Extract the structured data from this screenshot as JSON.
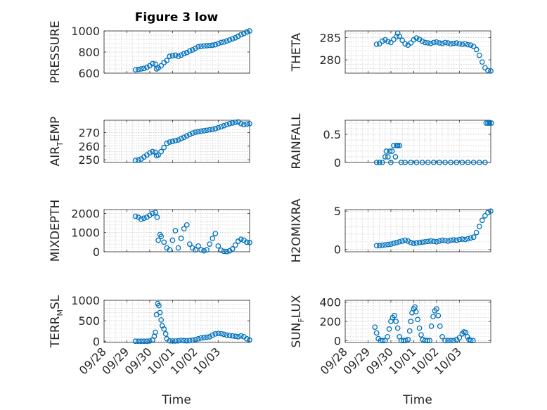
{
  "figure": {
    "title": "Figure 3 low"
  },
  "chart_data": [
    {
      "type": "scatter",
      "name": "pressure",
      "ylabel": "PRESSURE",
      "ylabel_sub": "",
      "ylabel_suffix": "",
      "ylim": [
        600,
        1000
      ],
      "yticks": [
        600,
        800,
        1000
      ],
      "points": [
        [
          0.05,
          632
        ],
        [
          0.1,
          635
        ],
        [
          0.15,
          640
        ],
        [
          0.2,
          645
        ],
        [
          0.25,
          655
        ],
        [
          0.3,
          670
        ],
        [
          0.35,
          690
        ],
        [
          0.4,
          685
        ],
        [
          0.42,
          640
        ],
        [
          0.45,
          650
        ],
        [
          0.5,
          670
        ],
        [
          0.55,
          700
        ],
        [
          0.6,
          720
        ],
        [
          0.65,
          760
        ],
        [
          0.7,
          765
        ],
        [
          0.75,
          770
        ],
        [
          0.8,
          760
        ],
        [
          0.85,
          770
        ],
        [
          0.9,
          785
        ],
        [
          0.95,
          795
        ],
        [
          1.0,
          810
        ],
        [
          1.05,
          820
        ],
        [
          1.1,
          835
        ],
        [
          1.15,
          850
        ],
        [
          1.2,
          855
        ],
        [
          1.25,
          858
        ],
        [
          1.3,
          860
        ],
        [
          1.35,
          862
        ],
        [
          1.4,
          865
        ],
        [
          1.45,
          870
        ],
        [
          1.5,
          880
        ],
        [
          1.55,
          890
        ],
        [
          1.6,
          895
        ],
        [
          1.65,
          905
        ],
        [
          1.7,
          915
        ],
        [
          1.75,
          925
        ],
        [
          1.8,
          935
        ],
        [
          1.85,
          950
        ],
        [
          1.9,
          965
        ],
        [
          1.95,
          975
        ],
        [
          2.0,
          990
        ],
        [
          2.05,
          1000
        ]
      ]
    },
    {
      "type": "scatter",
      "name": "theta",
      "ylabel": "THETA",
      "ylabel_sub": "",
      "ylabel_suffix": "",
      "ylim": [
        277,
        286.5
      ],
      "yticks": [
        280,
        285
      ],
      "points": [
        [
          0.05,
          283.5
        ],
        [
          0.1,
          283.6
        ],
        [
          0.15,
          284.2
        ],
        [
          0.2,
          284.5
        ],
        [
          0.25,
          284.1
        ],
        [
          0.3,
          283.9
        ],
        [
          0.35,
          284.6
        ],
        [
          0.4,
          285.2
        ],
        [
          0.42,
          286.0
        ],
        [
          0.45,
          285.3
        ],
        [
          0.5,
          284.4
        ],
        [
          0.55,
          283.6
        ],
        [
          0.6,
          283.3
        ],
        [
          0.65,
          283.8
        ],
        [
          0.7,
          284.5
        ],
        [
          0.75,
          284.9
        ],
        [
          0.8,
          284.6
        ],
        [
          0.85,
          284.2
        ],
        [
          0.9,
          283.9
        ],
        [
          0.95,
          283.8
        ],
        [
          1.0,
          283.7
        ],
        [
          1.05,
          283.9
        ],
        [
          1.1,
          284.0
        ],
        [
          1.15,
          283.8
        ],
        [
          1.2,
          283.7
        ],
        [
          1.25,
          283.9
        ],
        [
          1.3,
          283.8
        ],
        [
          1.35,
          283.6
        ],
        [
          1.4,
          283.7
        ],
        [
          1.45,
          283.8
        ],
        [
          1.5,
          283.6
        ],
        [
          1.55,
          283.5
        ],
        [
          1.6,
          283.6
        ],
        [
          1.65,
          283.4
        ],
        [
          1.7,
          283.3
        ],
        [
          1.75,
          283.0
        ],
        [
          1.8,
          282.3
        ],
        [
          1.85,
          281.0
        ],
        [
          1.9,
          279.5
        ],
        [
          1.95,
          278.2
        ],
        [
          2.0,
          277.6
        ],
        [
          2.05,
          277.5
        ]
      ]
    },
    {
      "type": "scatter",
      "name": "air_temp",
      "ylabel": "AIR",
      "ylabel_sub": "T",
      "ylabel_suffix": "EMP",
      "ylim": [
        248,
        279
      ],
      "yticks": [
        250,
        260,
        270
      ],
      "points": [
        [
          0.05,
          249.5
        ],
        [
          0.1,
          249.8
        ],
        [
          0.15,
          250.5
        ],
        [
          0.2,
          252
        ],
        [
          0.25,
          253.5
        ],
        [
          0.3,
          255
        ],
        [
          0.35,
          256
        ],
        [
          0.4,
          255.5
        ],
        [
          0.42,
          253
        ],
        [
          0.45,
          253.5
        ],
        [
          0.5,
          256
        ],
        [
          0.55,
          259
        ],
        [
          0.6,
          262
        ],
        [
          0.65,
          263
        ],
        [
          0.7,
          263.5
        ],
        [
          0.75,
          264
        ],
        [
          0.8,
          264.5
        ],
        [
          0.85,
          265.5
        ],
        [
          0.9,
          266.5
        ],
        [
          0.95,
          267.5
        ],
        [
          1.0,
          268.5
        ],
        [
          1.05,
          269.5
        ],
        [
          1.1,
          270.2
        ],
        [
          1.15,
          270.6
        ],
        [
          1.2,
          271
        ],
        [
          1.25,
          271.3
        ],
        [
          1.3,
          271.6
        ],
        [
          1.35,
          272
        ],
        [
          1.4,
          272.3
        ],
        [
          1.45,
          272.8
        ],
        [
          1.5,
          273.5
        ],
        [
          1.55,
          274.2
        ],
        [
          1.6,
          275
        ],
        [
          1.65,
          275.8
        ],
        [
          1.7,
          276.5
        ],
        [
          1.75,
          277
        ],
        [
          1.8,
          277.5
        ],
        [
          1.85,
          277.8
        ],
        [
          1.9,
          276.5
        ],
        [
          1.95,
          275.8
        ],
        [
          2.0,
          276.2
        ],
        [
          2.05,
          276.5
        ]
      ]
    },
    {
      "type": "scatter",
      "name": "rainfall",
      "ylabel": "RAINFALL",
      "ylabel_sub": "",
      "ylabel_suffix": "",
      "ylim": [
        0,
        0.75
      ],
      "yticks": [
        0,
        0.5
      ],
      "points": [
        [
          0.05,
          0
        ],
        [
          0.1,
          0
        ],
        [
          0.15,
          0
        ],
        [
          0.2,
          0.1
        ],
        [
          0.22,
          0.2
        ],
        [
          0.25,
          0.1
        ],
        [
          0.28,
          0.2
        ],
        [
          0.3,
          0
        ],
        [
          0.32,
          0.2
        ],
        [
          0.35,
          0.3
        ],
        [
          0.38,
          0.1
        ],
        [
          0.4,
          0.3
        ],
        [
          0.42,
          0.3
        ],
        [
          0.45,
          0.3
        ],
        [
          0.48,
          0
        ],
        [
          0.55,
          0
        ],
        [
          0.65,
          0
        ],
        [
          0.75,
          0
        ],
        [
          0.85,
          0
        ],
        [
          0.95,
          0
        ],
        [
          1.05,
          0
        ],
        [
          1.15,
          0
        ],
        [
          1.25,
          0
        ],
        [
          1.35,
          0
        ],
        [
          1.45,
          0
        ],
        [
          1.55,
          0
        ],
        [
          1.65,
          0
        ],
        [
          1.75,
          0
        ],
        [
          1.85,
          0
        ],
        [
          1.95,
          0
        ],
        [
          1.97,
          0.7
        ],
        [
          2.0,
          0.7
        ],
        [
          2.03,
          0.7
        ],
        [
          2.06,
          0.7
        ]
      ]
    },
    {
      "type": "scatter",
      "name": "mixdepth",
      "ylabel": "MIXDEPTH",
      "ylabel_sub": "",
      "ylabel_suffix": "",
      "ylim": [
        0,
        2200
      ],
      "yticks": [
        0,
        1000,
        2000
      ],
      "points": [
        [
          0.05,
          1850
        ],
        [
          0.1,
          1800
        ],
        [
          0.15,
          1700
        ],
        [
          0.2,
          1750
        ],
        [
          0.25,
          1800
        ],
        [
          0.3,
          1900
        ],
        [
          0.35,
          2000
        ],
        [
          0.4,
          2050
        ],
        [
          0.43,
          1800
        ],
        [
          0.45,
          600
        ],
        [
          0.48,
          900
        ],
        [
          0.5,
          800
        ],
        [
          0.55,
          500
        ],
        [
          0.6,
          200
        ],
        [
          0.65,
          100
        ],
        [
          0.7,
          600
        ],
        [
          0.75,
          1100
        ],
        [
          0.8,
          200
        ],
        [
          0.85,
          700
        ],
        [
          0.9,
          1200
        ],
        [
          0.95,
          1400
        ],
        [
          1.0,
          400
        ],
        [
          1.05,
          200
        ],
        [
          1.1,
          100
        ],
        [
          1.15,
          300
        ],
        [
          1.2,
          100
        ],
        [
          1.25,
          50
        ],
        [
          1.3,
          100
        ],
        [
          1.35,
          400
        ],
        [
          1.4,
          700
        ],
        [
          1.45,
          950
        ],
        [
          1.5,
          300
        ],
        [
          1.55,
          80
        ],
        [
          1.6,
          20
        ],
        [
          1.65,
          10
        ],
        [
          1.7,
          50
        ],
        [
          1.75,
          150
        ],
        [
          1.8,
          350
        ],
        [
          1.85,
          550
        ],
        [
          1.9,
          650
        ],
        [
          1.95,
          600
        ],
        [
          2.0,
          500
        ],
        [
          2.05,
          480
        ]
      ]
    },
    {
      "type": "scatter",
      "name": "h2omixra",
      "ylabel": "H2OMIXRA",
      "ylabel_sub": "",
      "ylabel_suffix": "",
      "ylim": [
        -0.3,
        5.2
      ],
      "yticks": [
        0,
        5
      ],
      "points": [
        [
          0.05,
          0.5
        ],
        [
          0.1,
          0.5
        ],
        [
          0.15,
          0.55
        ],
        [
          0.2,
          0.6
        ],
        [
          0.25,
          0.65
        ],
        [
          0.3,
          0.7
        ],
        [
          0.35,
          0.8
        ],
        [
          0.4,
          0.9
        ],
        [
          0.45,
          1.0
        ],
        [
          0.5,
          1.1
        ],
        [
          0.55,
          1.2
        ],
        [
          0.6,
          1.1
        ],
        [
          0.65,
          0.9
        ],
        [
          0.7,
          0.8
        ],
        [
          0.75,
          0.85
        ],
        [
          0.8,
          0.9
        ],
        [
          0.85,
          0.95
        ],
        [
          0.9,
          1.0
        ],
        [
          0.95,
          1.05
        ],
        [
          1.0,
          1.1
        ],
        [
          1.05,
          1.05
        ],
        [
          1.1,
          1.0
        ],
        [
          1.15,
          1.1
        ],
        [
          1.2,
          1.2
        ],
        [
          1.25,
          1.15
        ],
        [
          1.3,
          1.1
        ],
        [
          1.35,
          1.2
        ],
        [
          1.4,
          1.25
        ],
        [
          1.45,
          1.2
        ],
        [
          1.5,
          1.3
        ],
        [
          1.55,
          1.35
        ],
        [
          1.6,
          1.3
        ],
        [
          1.65,
          1.4
        ],
        [
          1.7,
          1.5
        ],
        [
          1.75,
          1.6
        ],
        [
          1.8,
          2.2
        ],
        [
          1.85,
          3.0
        ],
        [
          1.9,
          3.8
        ],
        [
          1.95,
          4.4
        ],
        [
          2.0,
          4.8
        ],
        [
          2.05,
          5.0
        ]
      ]
    },
    {
      "type": "scatter",
      "name": "terr_msl",
      "ylabel": "TERR",
      "ylabel_sub": "M",
      "ylabel_suffix": "SL",
      "ylim": [
        -30,
        1000
      ],
      "yticks": [
        0,
        500,
        1000
      ],
      "points": [
        [
          0.05,
          0
        ],
        [
          0.1,
          0
        ],
        [
          0.15,
          0
        ],
        [
          0.2,
          0
        ],
        [
          0.25,
          0
        ],
        [
          0.3,
          5
        ],
        [
          0.35,
          30
        ],
        [
          0.38,
          120
        ],
        [
          0.4,
          220
        ],
        [
          0.42,
          650
        ],
        [
          0.44,
          920
        ],
        [
          0.46,
          870
        ],
        [
          0.48,
          700
        ],
        [
          0.5,
          520
        ],
        [
          0.52,
          380
        ],
        [
          0.55,
          300
        ],
        [
          0.58,
          180
        ],
        [
          0.6,
          60
        ],
        [
          0.65,
          10
        ],
        [
          0.7,
          5
        ],
        [
          0.75,
          5
        ],
        [
          0.8,
          10
        ],
        [
          0.85,
          20
        ],
        [
          0.9,
          15
        ],
        [
          0.95,
          10
        ],
        [
          1.0,
          15
        ],
        [
          1.05,
          25
        ],
        [
          1.1,
          40
        ],
        [
          1.15,
          60
        ],
        [
          1.2,
          80
        ],
        [
          1.25,
          90
        ],
        [
          1.3,
          100
        ],
        [
          1.35,
          110
        ],
        [
          1.4,
          150
        ],
        [
          1.45,
          180
        ],
        [
          1.5,
          190
        ],
        [
          1.55,
          185
        ],
        [
          1.6,
          170
        ],
        [
          1.65,
          150
        ],
        [
          1.7,
          140
        ],
        [
          1.75,
          130
        ],
        [
          1.8,
          120
        ],
        [
          1.85,
          110
        ],
        [
          1.9,
          130
        ],
        [
          1.95,
          110
        ],
        [
          2.0,
          60
        ],
        [
          2.05,
          30
        ]
      ]
    },
    {
      "type": "scatter",
      "name": "sun_flux",
      "ylabel": "SUN",
      "ylabel_sub": "F",
      "ylabel_suffix": "LUX",
      "ylim": [
        -20,
        420
      ],
      "yticks": [
        0,
        200,
        400
      ],
      "points": [
        [
          0.02,
          140
        ],
        [
          0.05,
          80
        ],
        [
          0.08,
          20
        ],
        [
          0.12,
          0
        ],
        [
          0.16,
          0
        ],
        [
          0.2,
          0
        ],
        [
          0.24,
          40
        ],
        [
          0.27,
          120
        ],
        [
          0.3,
          200
        ],
        [
          0.33,
          240
        ],
        [
          0.36,
          260
        ],
        [
          0.39,
          200
        ],
        [
          0.42,
          130
        ],
        [
          0.45,
          40
        ],
        [
          0.48,
          0
        ],
        [
          0.52,
          0
        ],
        [
          0.56,
          0
        ],
        [
          0.6,
          10
        ],
        [
          0.63,
          100
        ],
        [
          0.65,
          200
        ],
        [
          0.67,
          290
        ],
        [
          0.7,
          330
        ],
        [
          0.72,
          350
        ],
        [
          0.74,
          300
        ],
        [
          0.77,
          220
        ],
        [
          0.8,
          130
        ],
        [
          0.83,
          60
        ],
        [
          0.86,
          10
        ],
        [
          0.9,
          0
        ],
        [
          0.94,
          0
        ],
        [
          0.98,
          0
        ],
        [
          1.01,
          150
        ],
        [
          1.04,
          250
        ],
        [
          1.07,
          310
        ],
        [
          1.1,
          330
        ],
        [
          1.13,
          260
        ],
        [
          1.16,
          150
        ],
        [
          1.2,
          40
        ],
        [
          1.25,
          0
        ],
        [
          1.3,
          0
        ],
        [
          1.35,
          0
        ],
        [
          1.4,
          0
        ],
        [
          1.45,
          10
        ],
        [
          1.5,
          30
        ],
        [
          1.55,
          70
        ],
        [
          1.58,
          90
        ],
        [
          1.61,
          85
        ],
        [
          1.64,
          40
        ],
        [
          1.67,
          10
        ],
        [
          1.7,
          0
        ],
        [
          1.74,
          0
        ]
      ]
    }
  ],
  "axes": {
    "xlim": [
      -0.5,
      2.05
    ],
    "xtick_values": [
      -0.5,
      -0.1,
      0.3,
      0.7,
      1.1,
      1.5
    ],
    "xtick_labels": [
      "09/28",
      "09/29",
      "09/30",
      "10/01",
      "10/02",
      "10/03"
    ],
    "xlabel": "Time",
    "grid": true,
    "marker_color": "#0072bd"
  }
}
